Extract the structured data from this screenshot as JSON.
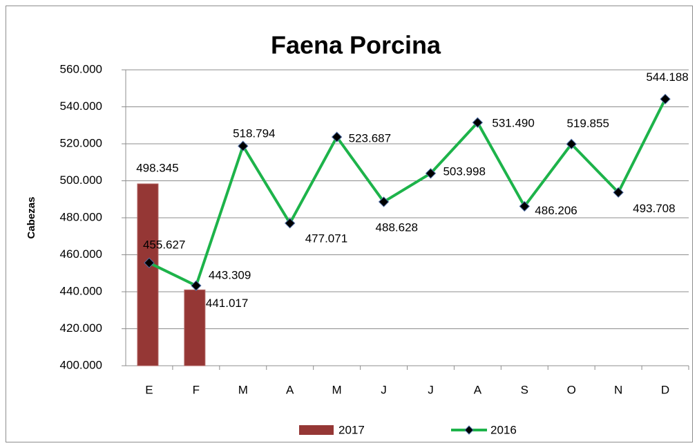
{
  "chart_data": {
    "type": "bar",
    "title": "Faena Porcina",
    "y_label": "Cabezas",
    "categories": [
      "E",
      "F",
      "M",
      "A",
      "M",
      "J",
      "J",
      "A",
      "S",
      "O",
      "N",
      "D"
    ],
    "ylim": [
      400000,
      560000
    ],
    "yticks": [
      {
        "value": 400000,
        "label": "400.000"
      },
      {
        "value": 420000,
        "label": "420.000"
      },
      {
        "value": 440000,
        "label": "440.000"
      },
      {
        "value": 460000,
        "label": "460.000"
      },
      {
        "value": 480000,
        "label": "480.000"
      },
      {
        "value": 500000,
        "label": "500.000"
      },
      {
        "value": 520000,
        "label": "520.000"
      },
      {
        "value": 540000,
        "label": "540.000"
      },
      {
        "value": 560000,
        "label": "560.000"
      }
    ],
    "grid": true,
    "legend": "bottom",
    "series": [
      {
        "name": "2017",
        "type": "bar",
        "color": "#953735",
        "values": [
          498345,
          441017,
          null,
          null,
          null,
          null,
          null,
          null,
          null,
          null,
          null,
          null
        ],
        "value_labels": [
          "498.345",
          "441.017",
          null,
          null,
          null,
          null,
          null,
          null,
          null,
          null,
          null,
          null
        ]
      },
      {
        "name": "2016",
        "type": "line",
        "color": "#1db34a",
        "values": [
          455627,
          443309,
          518794,
          477071,
          523687,
          488628,
          503998,
          531490,
          486206,
          519855,
          493708,
          544188
        ],
        "value_labels": [
          "455.627",
          "443.309",
          "518.794",
          "477.071",
          "523.687",
          "488.628",
          "503.998",
          "531.490",
          "486.206",
          "519.855",
          "493.708",
          "544.188"
        ]
      }
    ]
  }
}
